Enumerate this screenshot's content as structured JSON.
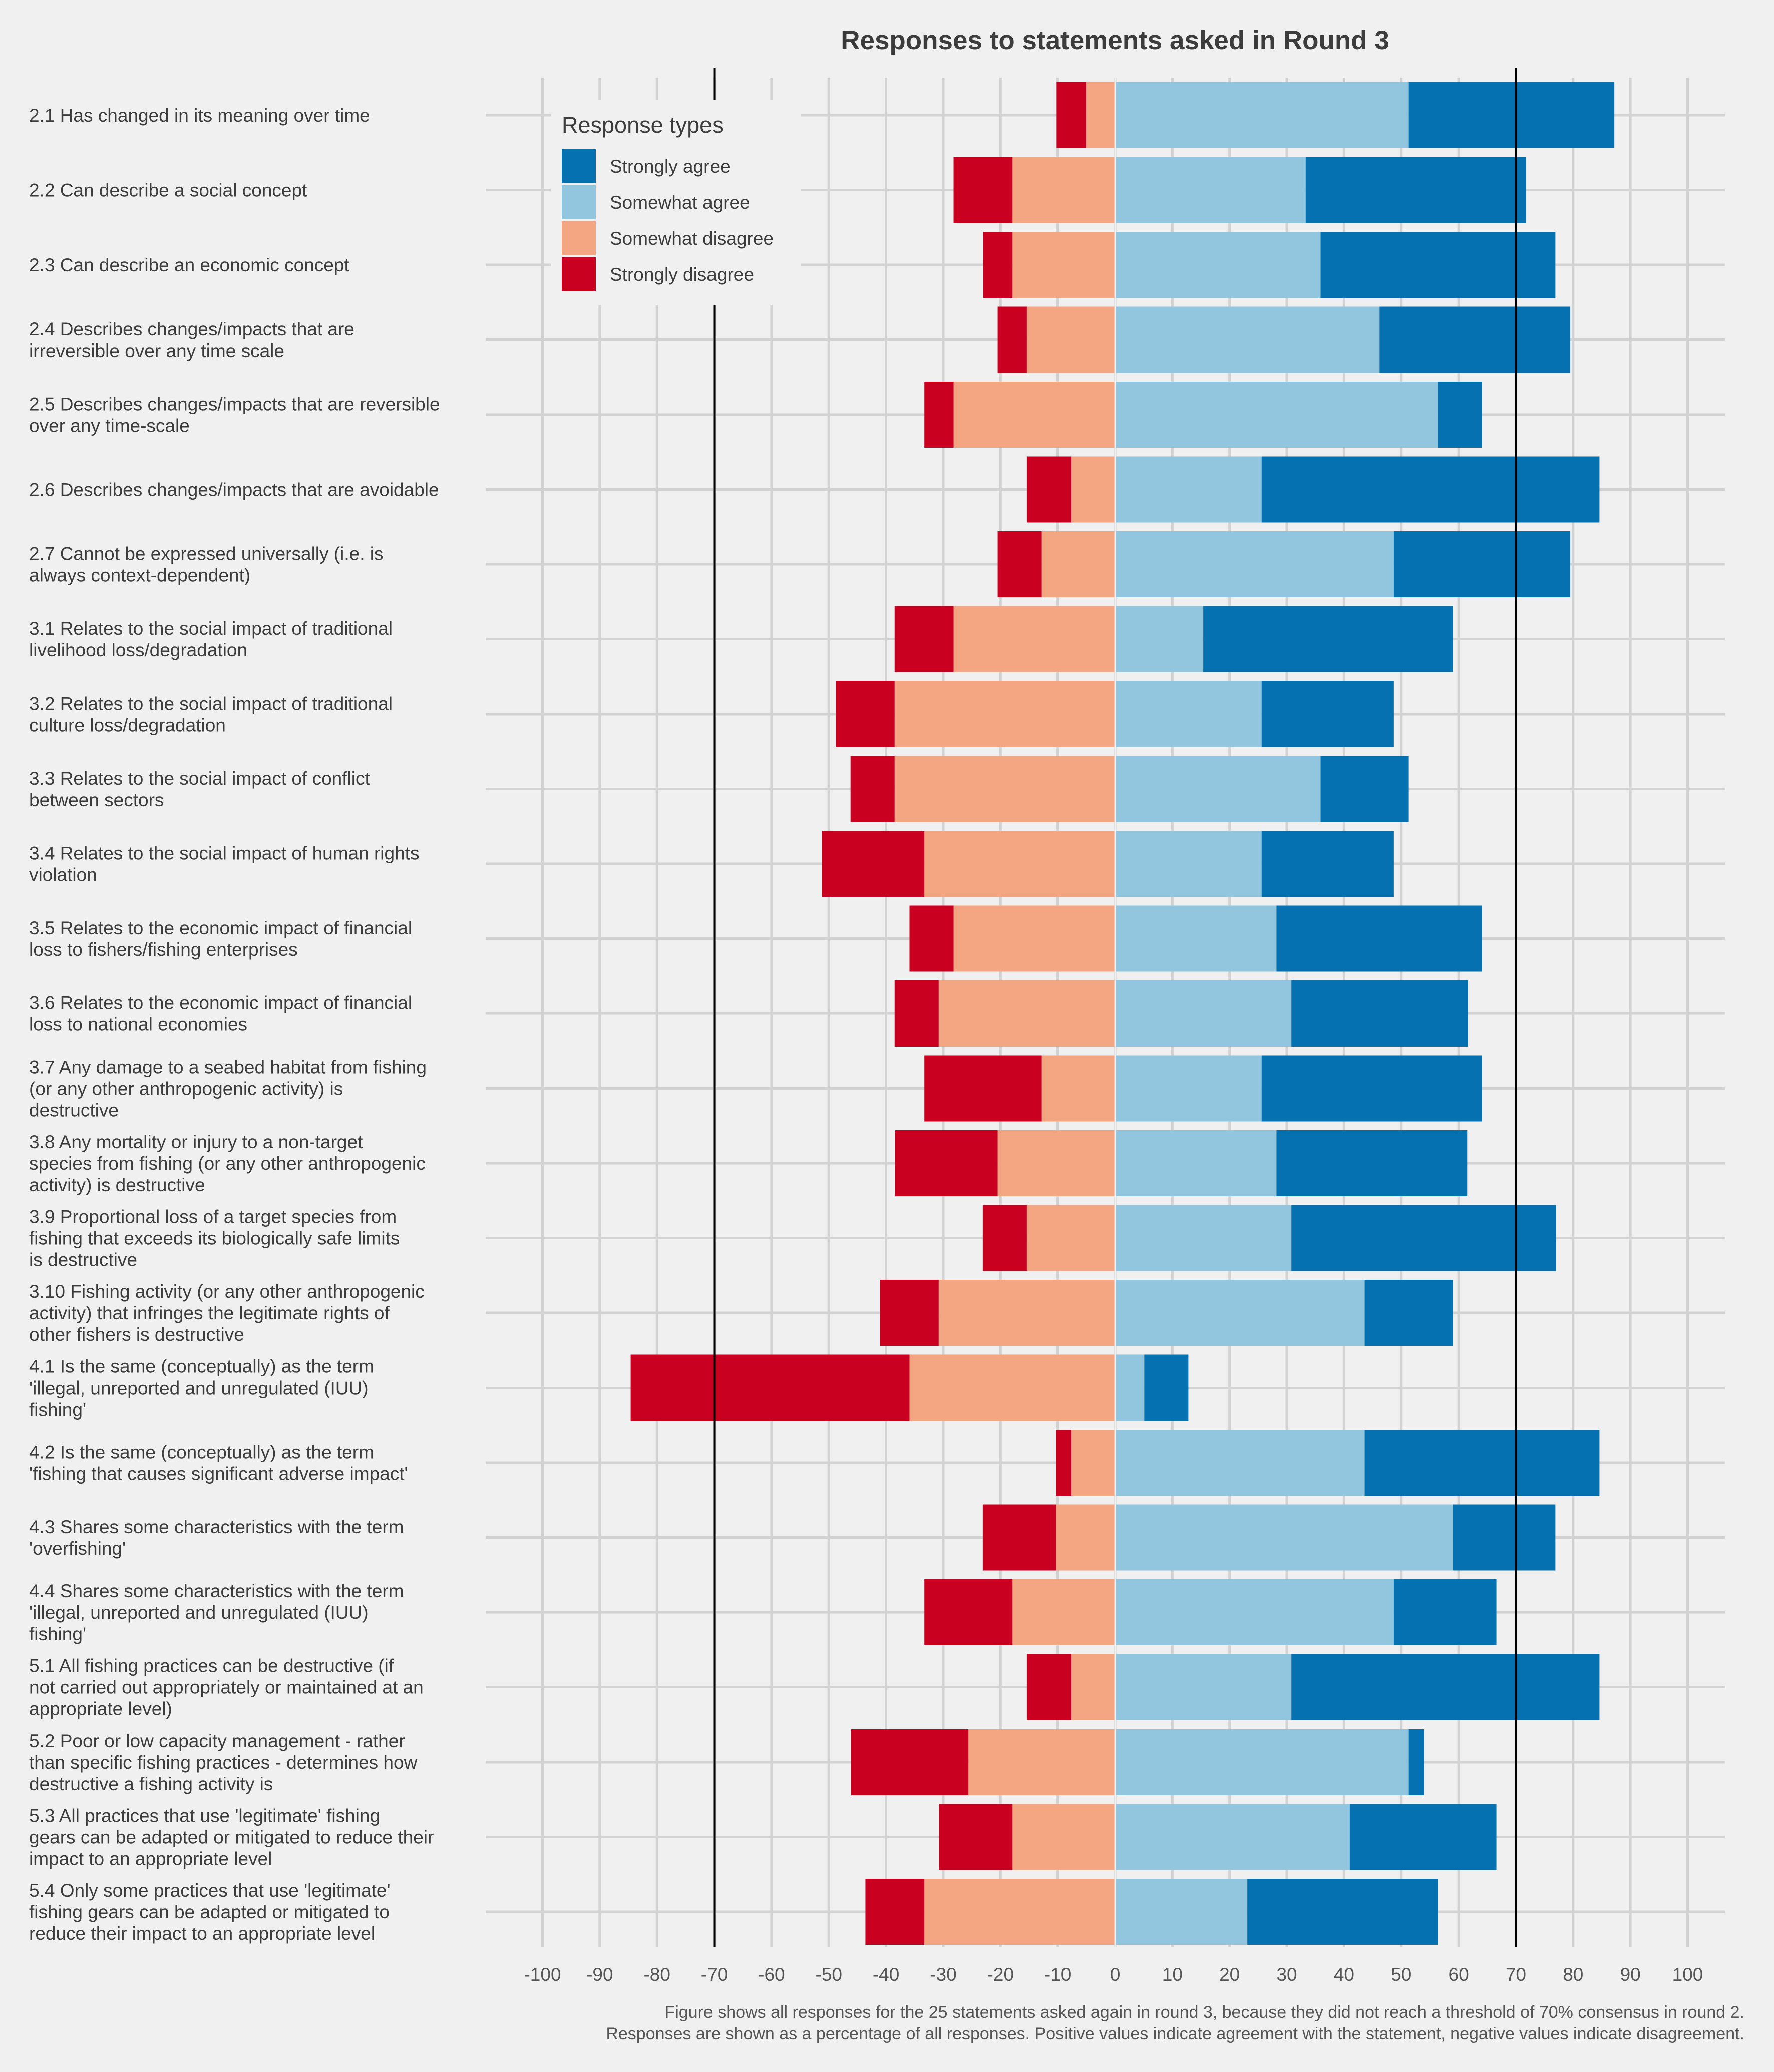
{
  "chart_data": {
    "type": "bar",
    "orientation": "horizontal",
    "stacked": "diverging",
    "title": "Responses to statements asked in Round 3",
    "caption_lines": [
      "Figure shows all responses for the 25 statements asked again in round 3, because they did not reach a threshold of 70% consensus in round 2.",
      "Responses are shown as a percentage of all responses. Positive values indicate agreement with the statement, negative values indicate disagreement."
    ],
    "xlim": [
      -100,
      100
    ],
    "x_ticks": [
      -100,
      -90,
      -80,
      -70,
      -60,
      -50,
      -40,
      -30,
      -20,
      -10,
      0,
      10,
      20,
      30,
      40,
      50,
      60,
      70,
      80,
      90,
      100
    ],
    "x_tick_labels": [
      "-100",
      "-90",
      "-80",
      "-70",
      "-60",
      "-50",
      "-40",
      "-30",
      "-20",
      "-10",
      "0",
      "10",
      "20",
      "30",
      "40",
      "50",
      "60",
      "70",
      "80",
      "90",
      "100"
    ],
    "reference_lines": [
      -70,
      70
    ],
    "grid": true,
    "legend": {
      "title": "Response types",
      "position": "top-left",
      "entries": [
        "Strongly agree",
        "Somewhat agree",
        "Somewhat disagree",
        "Strongly disagree"
      ]
    },
    "colors": {
      "strongly_agree": "#0571b0",
      "somewhat_agree": "#92c5de",
      "somewhat_disagree": "#f4a582",
      "strongly_disagree": "#ca0020",
      "background": "#f0f0f0",
      "grid": "#d2d2d2",
      "reference_line": "#000000"
    },
    "series": [
      {
        "name": "Strongly disagree",
        "values": [
          -5.1,
          -10.3,
          -5.1,
          -5.1,
          -5.1,
          -7.7,
          -7.7,
          -10.3,
          -10.3,
          -7.7,
          -17.9,
          -7.7,
          -7.7,
          -20.5,
          -17.9,
          -7.7,
          -10.3,
          -48.7,
          -2.6,
          -12.8,
          -15.4,
          -7.7,
          -20.5,
          -12.8,
          -10.3
        ]
      },
      {
        "name": "Somewhat disagree",
        "values": [
          -5.1,
          -17.9,
          -17.9,
          -15.4,
          -28.2,
          -7.7,
          -12.8,
          -28.2,
          -38.5,
          -38.5,
          -33.3,
          -28.2,
          -30.8,
          -12.8,
          -20.5,
          -15.4,
          -30.8,
          -35.9,
          -7.7,
          -10.3,
          -17.9,
          -7.7,
          -25.6,
          -17.9,
          -33.3
        ]
      },
      {
        "name": "Somewhat agree",
        "values": [
          51.3,
          33.3,
          35.9,
          46.2,
          56.4,
          25.6,
          48.7,
          15.4,
          25.6,
          35.9,
          25.6,
          28.2,
          30.8,
          25.6,
          28.2,
          30.8,
          43.6,
          5.1,
          43.6,
          59.0,
          48.7,
          30.8,
          51.3,
          41.0,
          23.1
        ]
      },
      {
        "name": "Strongly agree",
        "values": [
          35.9,
          38.5,
          41.0,
          33.3,
          7.7,
          59.0,
          30.8,
          43.6,
          23.1,
          15.4,
          23.1,
          35.9,
          30.8,
          38.5,
          33.3,
          46.2,
          15.4,
          7.7,
          41.0,
          17.9,
          17.9,
          53.8,
          2.6,
          25.6,
          33.3
        ]
      }
    ],
    "categories": [
      [
        "2.1 Has changed in its meaning over time"
      ],
      [
        "2.2 Can describe a social concept"
      ],
      [
        "2.3 Can describe an economic concept"
      ],
      [
        "2.4 Describes changes/impacts that are",
        "irreversible over any time scale"
      ],
      [
        "2.5 Describes changes/impacts that are reversible",
        "over any time-scale"
      ],
      [
        "2.6 Describes changes/impacts that are avoidable"
      ],
      [
        "2.7 Cannot be expressed universally (i.e. is",
        "always context-dependent)"
      ],
      [
        "3.1 Relates to the social impact of traditional",
        "livelihood loss/degradation"
      ],
      [
        "3.2 Relates to the social impact of traditional",
        "culture loss/degradation"
      ],
      [
        "3.3 Relates to the social impact of conflict",
        "between sectors"
      ],
      [
        "3.4 Relates to the social impact of human rights",
        "violation"
      ],
      [
        "3.5 Relates to the economic impact of financial",
        "loss to fishers/fishing enterprises"
      ],
      [
        "3.6 Relates to the economic impact of financial",
        "loss to national economies"
      ],
      [
        "3.7 Any damage to a seabed habitat from fishing",
        "(or any other anthropogenic activity) is",
        "destructive"
      ],
      [
        "3.8 Any mortality or injury to a non-target",
        "species from fishing (or any other anthropogenic",
        "activity) is destructive"
      ],
      [
        "3.9 Proportional loss of a target species from",
        "fishing that exceeds its biologically safe limits",
        "is destructive"
      ],
      [
        "3.10 Fishing activity (or any other anthropogenic",
        "activity) that infringes the legitimate rights of",
        "other fishers is destructive"
      ],
      [
        "4.1 Is the same (conceptually) as the term",
        "'illegal, unreported and unregulated (IUU)",
        "fishing'"
      ],
      [
        "4.2 Is the same (conceptually) as the term",
        "'fishing that causes significant adverse impact'"
      ],
      [
        "4.3 Shares some characteristics with the term",
        "'overfishing'"
      ],
      [
        "4.4 Shares some characteristics with the term",
        "'illegal, unreported and unregulated (IUU)",
        "fishing'"
      ],
      [
        "5.1 All fishing practices can be destructive (if",
        "not carried out appropriately or maintained at an",
        "appropriate level)"
      ],
      [
        "5.2 Poor or low capacity management - rather",
        "than specific fishing practices - determines how",
        "destructive a fishing activity is"
      ],
      [
        "5.3 All practices that use 'legitimate' fishing",
        "gears can be adapted or mitigated to reduce their",
        "impact to an appropriate level"
      ],
      [
        "5.4 Only some practices that use 'legitimate'",
        "fishing gears can be adapted or mitigated to",
        "reduce their impact to an appropriate level"
      ]
    ]
  }
}
